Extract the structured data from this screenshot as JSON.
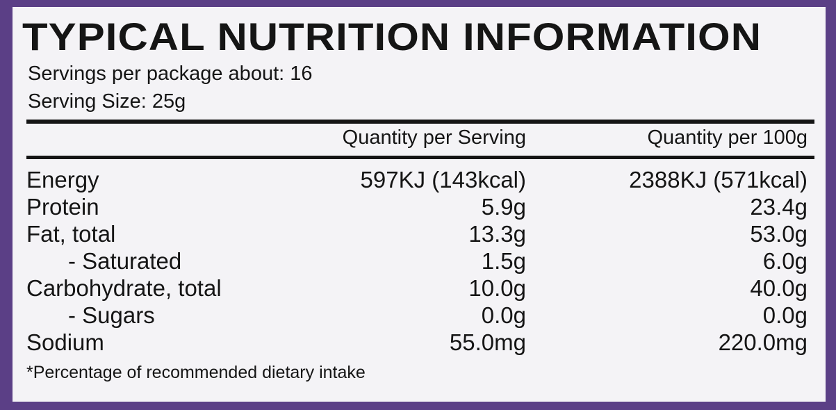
{
  "header": {
    "title": "TYPICAL NUTRITION INFORMATION",
    "servings": "Servings per package about: 16",
    "serving_size": "Serving Size: 25g"
  },
  "table": {
    "columns": [
      "Quantity per Serving",
      "Quantity per 100g"
    ],
    "rows": [
      [
        "Energy",
        "597KJ (143kcal)",
        "2388KJ (571kcal)"
      ],
      [
        "Protein",
        "5.9g",
        "23.4g"
      ],
      [
        "Fat, total",
        "13.3g",
        "53.0g"
      ],
      [
        "- Saturated",
        "1.5g",
        "6.0g"
      ],
      [
        "Carbohydrate, total",
        "10.0g",
        "40.0g"
      ],
      [
        "- Sugars",
        "0.0g",
        "0.0g"
      ],
      [
        "Sodium",
        "55.0mg",
        "220.0mg"
      ]
    ]
  },
  "footnote": "*Percentage of recommended dietary intake"
}
